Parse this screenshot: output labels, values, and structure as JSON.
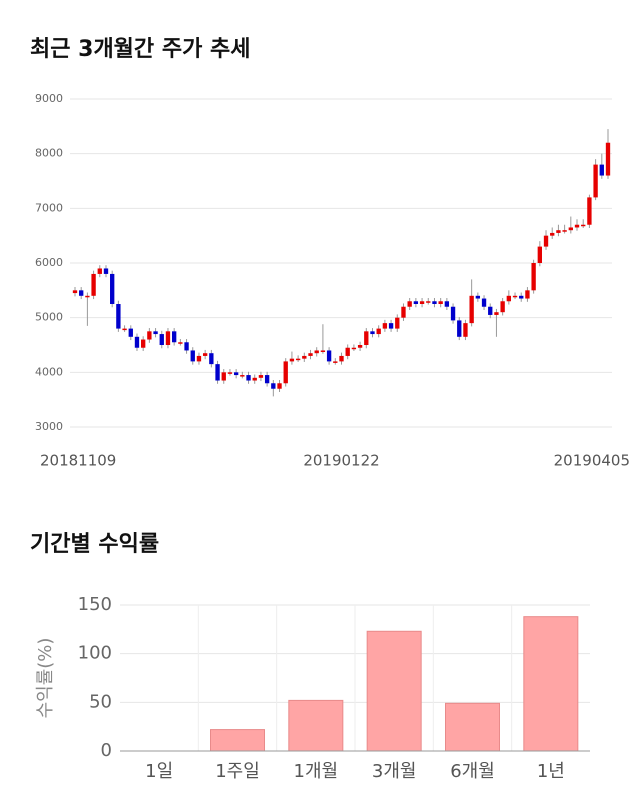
{
  "chart_data": [
    {
      "type": "candlestick",
      "title": "최근 3개월간 주가 추세",
      "categories": [
        "20181109",
        null,
        null,
        null,
        null,
        null,
        null,
        null,
        null,
        null,
        null,
        null,
        null,
        null,
        null,
        null,
        null,
        null,
        null,
        null,
        null,
        null,
        null,
        null,
        null,
        null,
        null,
        null,
        null,
        null,
        null,
        null,
        null,
        null,
        null,
        null,
        null,
        null,
        null,
        null,
        null,
        null,
        null,
        "20190122",
        null,
        null,
        null,
        null,
        null,
        null,
        null,
        null,
        null,
        null,
        null,
        null,
        null,
        null,
        null,
        null,
        null,
        null,
        null,
        null,
        null,
        null,
        null,
        null,
        null,
        null,
        null,
        null,
        null,
        null,
        null,
        null,
        null,
        null,
        null,
        null,
        null,
        null,
        null,
        null,
        null,
        null,
        "20190405"
      ],
      "open": [
        5450,
        5500,
        5400,
        5400,
        5800,
        5900,
        5800,
        5250,
        4800,
        4800,
        4650,
        4450,
        4600,
        4750,
        4700,
        4500,
        4750,
        4550,
        4550,
        4400,
        4200,
        4300,
        4350,
        4150,
        3850,
        4000,
        4000,
        3950,
        3950,
        3850,
        3900,
        3950,
        3800,
        3700,
        3800,
        4200,
        4250,
        4250,
        4300,
        4350,
        4400,
        4400,
        4200,
        4200,
        4300,
        4450,
        4450,
        4500,
        4750,
        4700,
        4800,
        4900,
        4800,
        5000,
        5200,
        5300,
        5250,
        5300,
        5300,
        5250,
        5300,
        5200,
        4950,
        4650,
        4900,
        5400,
        5350,
        5200,
        5050,
        5100,
        5300,
        5400,
        5400,
        5350,
        5500,
        6000,
        6300,
        6500,
        6550,
        6600,
        6600,
        6650,
        6700,
        6700,
        7200,
        7800,
        7600
      ],
      "high": [
        5560,
        5560,
        5460,
        5860,
        5960,
        5960,
        5860,
        5310,
        4860,
        4860,
        4710,
        4660,
        4810,
        4810,
        4760,
        4810,
        4810,
        4610,
        4610,
        4460,
        4360,
        4410,
        4410,
        4210,
        4060,
        4060,
        4060,
        4010,
        4010,
        3960,
        4010,
        4010,
        3860,
        3860,
        4260,
        4380,
        4310,
        4360,
        4410,
        4460,
        4880,
        4460,
        4260,
        4360,
        4510,
        4510,
        4560,
        4810,
        4810,
        4860,
        4960,
        4960,
        5060,
        5260,
        5360,
        5360,
        5360,
        5360,
        5360,
        5360,
        5360,
        5260,
        5010,
        4960,
        5700,
        5460,
        5410,
        5260,
        5160,
        5360,
        5500,
        5460,
        5460,
        5560,
        6060,
        6400,
        6600,
        6650,
        6700,
        6700,
        6850,
        6800,
        6800,
        7250,
        7900,
        8000,
        8450
      ],
      "low": [
        5390,
        5340,
        4850,
        5340,
        5740,
        5740,
        5190,
        4740,
        4740,
        4590,
        4390,
        4390,
        4540,
        4640,
        4440,
        4440,
        4490,
        4490,
        4340,
        4140,
        4140,
        4240,
        4090,
        3790,
        3790,
        3940,
        3890,
        3890,
        3790,
        3790,
        3840,
        3740,
        3560,
        3640,
        3740,
        4140,
        4190,
        4190,
        4240,
        4290,
        4340,
        4140,
        4140,
        4140,
        4240,
        4390,
        4390,
        4440,
        4640,
        4640,
        4740,
        4740,
        4740,
        4940,
        5140,
        5190,
        5190,
        5240,
        5190,
        5190,
        5140,
        4890,
        4590,
        4590,
        4840,
        5290,
        5140,
        4990,
        4650,
        5040,
        5240,
        5340,
        5290,
        5290,
        5440,
        5940,
        6240,
        6440,
        6490,
        6540,
        6540,
        6590,
        6640,
        6640,
        7150,
        7540,
        7540
      ],
      "close": [
        5500,
        5400,
        5400,
        5800,
        5900,
        5800,
        5250,
        4800,
        4800,
        4650,
        4450,
        4600,
        4750,
        4700,
        4500,
        4750,
        4550,
        4550,
        4400,
        4200,
        4300,
        4350,
        4150,
        3850,
        4000,
        4000,
        3950,
        3950,
        3850,
        3900,
        3950,
        3800,
        3700,
        3800,
        4200,
        4250,
        4250,
        4300,
        4350,
        4400,
        4400,
        4200,
        4200,
        4300,
        4450,
        4450,
        4500,
        4750,
        4700,
        4800,
        4900,
        4800,
        5000,
        5200,
        5300,
        5250,
        5300,
        5300,
        5250,
        5300,
        5200,
        4950,
        4650,
        4900,
        5400,
        5350,
        5200,
        5050,
        5100,
        5300,
        5400,
        5400,
        5350,
        5500,
        6000,
        6300,
        6500,
        6550,
        6600,
        6600,
        6650,
        6700,
        6700,
        7200,
        7800,
        7600,
        8200
      ],
      "up_color": "#e60000",
      "down_color": "#0000cc",
      "ylim": [
        3000,
        9000
      ],
      "yticks": [
        3000,
        4000,
        5000,
        6000,
        7000,
        8000,
        9000
      ],
      "grid": true
    },
    {
      "type": "bar",
      "title": "기간별 수익률",
      "ylabel": "수익률(%)",
      "categories": [
        "1일",
        "1주일",
        "1개월",
        "3개월",
        "6개월",
        "1년"
      ],
      "values": [
        0,
        22,
        52,
        123,
        49,
        138
      ],
      "color": "#ffa5a5",
      "ylim": [
        0,
        150
      ],
      "yticks": [
        0,
        50,
        100,
        150
      ],
      "grid": true
    }
  ]
}
